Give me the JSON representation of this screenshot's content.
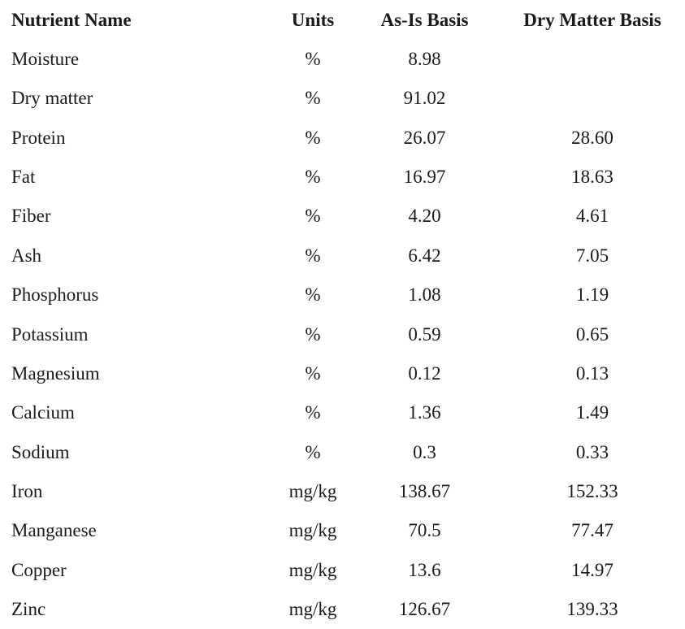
{
  "table": {
    "columns": [
      "Nutrient Name",
      "Units",
      "As-Is Basis",
      "Dry Matter Basis"
    ],
    "rows": [
      {
        "name": "Moisture",
        "units": "%",
        "as_is": "8.98",
        "dry_matter": ""
      },
      {
        "name": "Dry matter",
        "units": "%",
        "as_is": "91.02",
        "dry_matter": ""
      },
      {
        "name": "Protein",
        "units": "%",
        "as_is": "26.07",
        "dry_matter": "28.60"
      },
      {
        "name": "Fat",
        "units": "%",
        "as_is": "16.97",
        "dry_matter": "18.63"
      },
      {
        "name": "Fiber",
        "units": "%",
        "as_is": "4.20",
        "dry_matter": "4.61"
      },
      {
        "name": "Ash",
        "units": "%",
        "as_is": "6.42",
        "dry_matter": "7.05"
      },
      {
        "name": "Phosphorus",
        "units": "%",
        "as_is": "1.08",
        "dry_matter": "1.19"
      },
      {
        "name": "Potassium",
        "units": "%",
        "as_is": "0.59",
        "dry_matter": "0.65"
      },
      {
        "name": "Magnesium",
        "units": "%",
        "as_is": "0.12",
        "dry_matter": "0.13"
      },
      {
        "name": "Calcium",
        "units": "%",
        "as_is": "1.36",
        "dry_matter": "1.49"
      },
      {
        "name": "Sodium",
        "units": "%",
        "as_is": "0.3",
        "dry_matter": "0.33"
      },
      {
        "name": "Iron",
        "units": "mg/kg",
        "as_is": "138.67",
        "dry_matter": "152.33"
      },
      {
        "name": "Manganese",
        "units": "mg/kg",
        "as_is": "70.5",
        "dry_matter": "77.47"
      },
      {
        "name": "Copper",
        "units": "mg/kg",
        "as_is": "13.6",
        "dry_matter": "14.97"
      },
      {
        "name": "Zinc",
        "units": "mg/kg",
        "as_is": "126.67",
        "dry_matter": "139.33"
      }
    ],
    "text_color": "#1e1a1b",
    "background_color": "#ffffff"
  }
}
